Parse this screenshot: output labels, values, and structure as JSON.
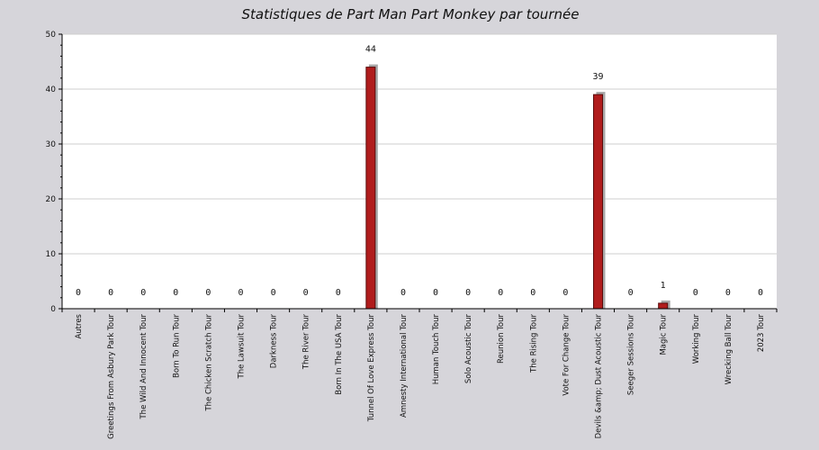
{
  "chart_data": {
    "type": "bar",
    "title": "Statistiques de Part Man Part Monkey par tournée",
    "xlabel": "",
    "ylabel": "",
    "ylim": [
      0,
      50
    ],
    "yticks": [
      0,
      10,
      20,
      30,
      40,
      50
    ],
    "grid": true,
    "legend": "none",
    "colors": {
      "page_background": "#d6d5da",
      "plot_background": "#ffffff",
      "bar": "#b01c1c",
      "bar_shadow": "#a8a8a8",
      "grid": "#cfcfcf"
    },
    "categories": [
      "Autres",
      "Greetings From Asbury Park Tour",
      "The Wild And Innocent Tour",
      "Born To Run Tour",
      "The Chicken Scratch Tour",
      "The Lawsuit Tour",
      "Darkness Tour",
      "The River Tour",
      "Born In The USA Tour",
      "Tunnel Of Love Express Tour",
      "Amnesty International Tour",
      "Human Touch Tour",
      "Solo Acoustic Tour",
      "Reunion Tour",
      "The Rising Tour",
      "Vote For Change Tour",
      "Devils &amp; Dust Acoustic Tour",
      "Seeger Sessions Tour",
      "Magic Tour",
      "Working Tour",
      "Wrecking Ball Tour",
      "2023 Tour"
    ],
    "values": [
      0,
      0,
      0,
      0,
      0,
      0,
      0,
      0,
      0,
      44,
      0,
      0,
      0,
      0,
      0,
      0,
      39,
      0,
      1,
      0,
      0,
      0
    ]
  }
}
